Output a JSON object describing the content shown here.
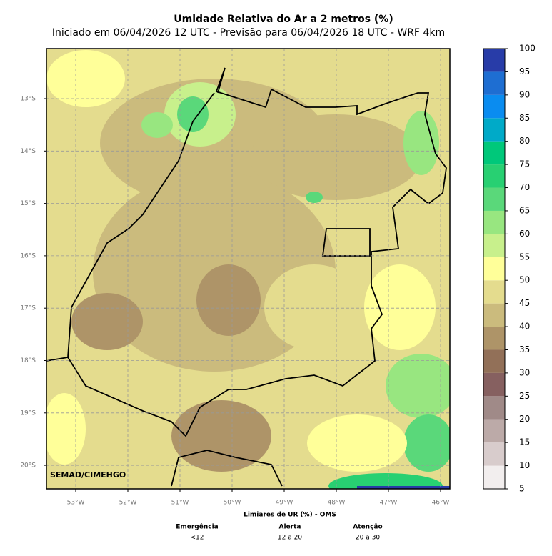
{
  "title": "Umidade Relativa do Ar a 2 metros (%)",
  "subtitle": "Iniciado em 06/04/2026 12 UTC - Previsão para 06/04/2026 18 UTC - WRF 4km",
  "map": {
    "lon_labels": [
      "53°W",
      "52°W",
      "51°W",
      "50°W",
      "49°W",
      "48°W",
      "47°W",
      "46°W"
    ],
    "lat_labels": [
      "13°S",
      "14°S",
      "15°S",
      "16°S",
      "17°S",
      "18°S",
      "19°S",
      "20°S"
    ],
    "credit": "SEMAD/CIMEHGO"
  },
  "colorbar": {
    "lim": [
      5,
      100
    ],
    "ticks": [
      5,
      10,
      15,
      20,
      25,
      30,
      35,
      40,
      45,
      50,
      55,
      60,
      65,
      70,
      75,
      80,
      85,
      90,
      95,
      100
    ],
    "colors": [
      "#f2eeee",
      "#d8cccc",
      "#bcaaa8",
      "#a08a88",
      "#866060",
      "#927058",
      "#ae9468",
      "#cbbb7d",
      "#e4dc8e",
      "#ffff99",
      "#c8f08c",
      "#98e680",
      "#5ad87a",
      "#28d072",
      "#00c87a",
      "#00aac8",
      "#0a8cf0",
      "#1e6ed2",
      "#283ca8"
    ]
  },
  "thresholds": {
    "title": "Limiares de UR (%) - OMS",
    "levels": [
      {
        "name": "Emergência",
        "range": "<12"
      },
      {
        "name": "Alerta",
        "range": "12 a 20"
      },
      {
        "name": "Atenção",
        "range": "20 a 30"
      }
    ]
  }
}
